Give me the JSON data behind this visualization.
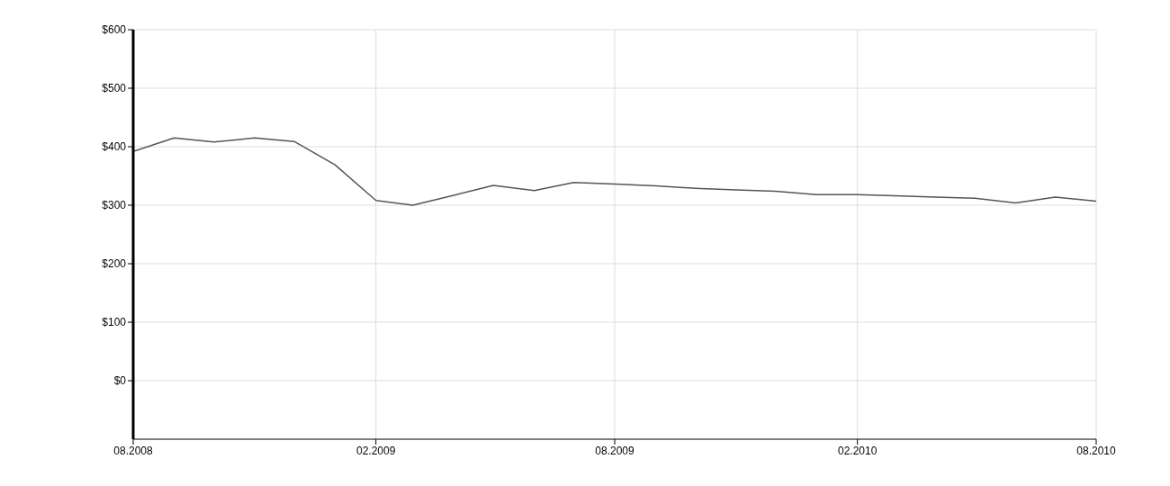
{
  "chart_data": {
    "type": "line",
    "x": [
      "2008-08",
      "2008-09",
      "2008-10",
      "2008-11",
      "2008-12",
      "2009-01",
      "2009-02",
      "2009-03",
      "2009-04",
      "2009-05",
      "2009-06",
      "2009-07",
      "2009-08",
      "2009-09",
      "2009-10",
      "2009-11",
      "2009-12",
      "2010-01",
      "2010-02",
      "2010-03",
      "2010-04",
      "2010-05",
      "2010-06",
      "2010-07",
      "2010-08"
    ],
    "series": [
      {
        "color": "#555555",
        "values": [
          392,
          415,
          408,
          415,
          409,
          369,
          308,
          300,
          317,
          334,
          325,
          339,
          336,
          333,
          329,
          326,
          324,
          318,
          318,
          316,
          314,
          312,
          304,
          314,
          307
        ]
      }
    ],
    "xlim": [
      "2008-08",
      "2010-08"
    ],
    "xticks": [
      {
        "value": "2008-08",
        "label": "08.2008"
      },
      {
        "value": "2009-02",
        "label": "02.2009"
      },
      {
        "value": "2009-08",
        "label": "08.2009"
      },
      {
        "value": "2010-02",
        "label": "02.2010"
      },
      {
        "value": "2010-08",
        "label": "08.2010"
      }
    ],
    "ylim": [
      -100,
      600
    ],
    "yticks": [
      {
        "value": 0,
        "label": "$0"
      },
      {
        "value": 100,
        "label": "$100"
      },
      {
        "value": 200,
        "label": "$200"
      },
      {
        "value": 300,
        "label": "$300"
      },
      {
        "value": 400,
        "label": "$400"
      },
      {
        "value": 500,
        "label": "$500"
      },
      {
        "value": 600,
        "label": "$600"
      }
    ],
    "grid": true,
    "marker": "none",
    "line_style": "solid"
  }
}
